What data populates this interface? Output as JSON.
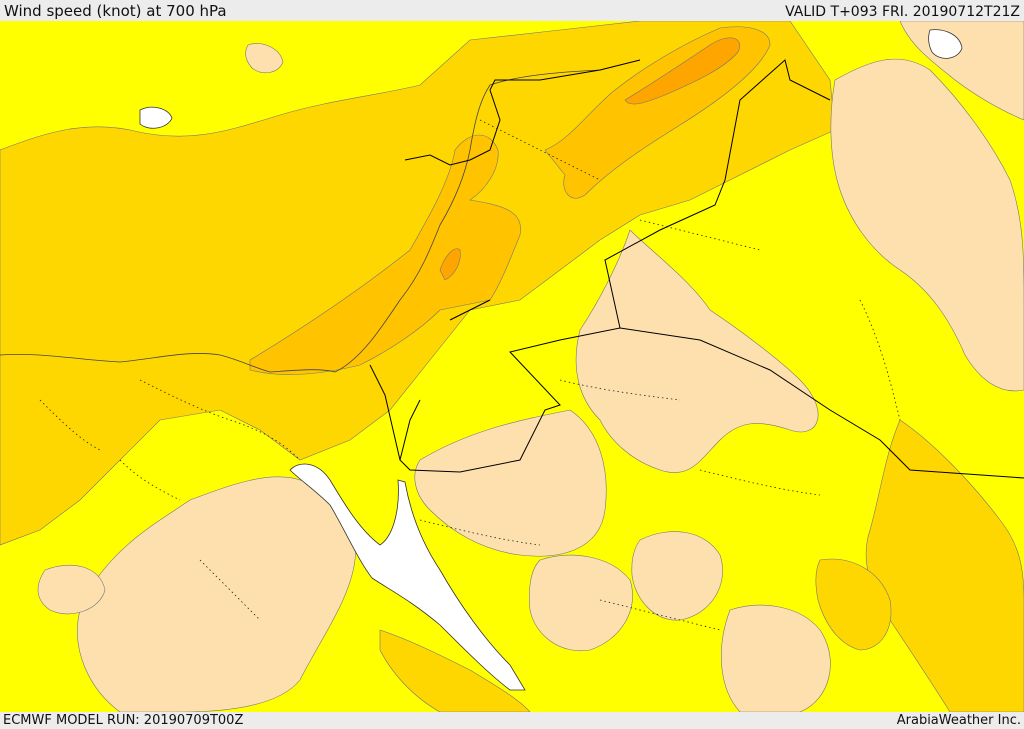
{
  "header": {
    "title": "Wind speed (knot) at 700 hPa",
    "valid": "VALID T+093 FRI. 20190712T21Z"
  },
  "footer": {
    "model_run": "ECMWF MODEL RUN: 20190709T00Z",
    "credit": "ArabiaWeather Inc."
  },
  "map": {
    "variable": "wind speed at 700 hPa",
    "colors": {
      "water": "#ffffff",
      "calm": "#fde0ae",
      "light": "#ffff00",
      "moderate": "#ffd700",
      "fresh": "#ffc300",
      "strong": "#ffa500",
      "border": "#000000",
      "coast": "#555555"
    }
  }
}
